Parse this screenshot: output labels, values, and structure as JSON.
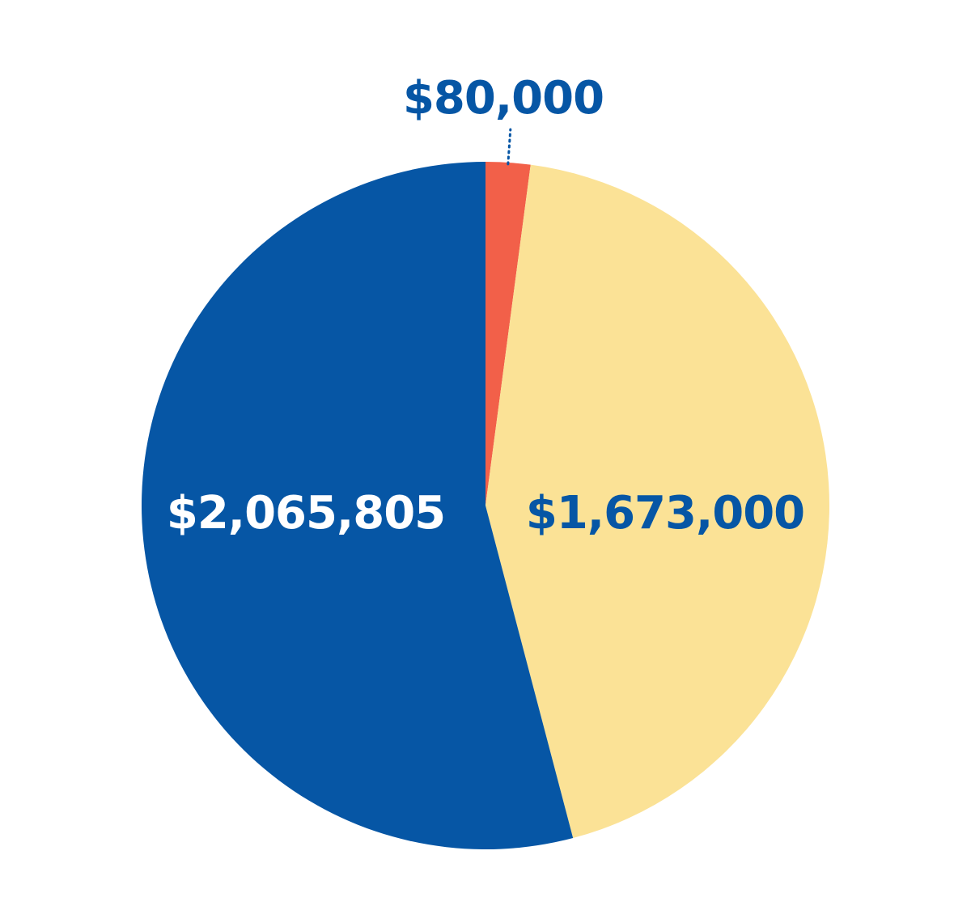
{
  "chart_data": {
    "type": "pie",
    "slices": [
      {
        "label": "$80,000",
        "value": 80000,
        "color": "#F26049",
        "label_color": "#0656A5"
      },
      {
        "label": "$1,673,000",
        "value": 1673000,
        "color": "#FBE296",
        "label_color": "#0656A5"
      },
      {
        "label": "$2,065,805",
        "value": 2065805,
        "color": "#0656A5",
        "label_color": "#FFFFFF"
      }
    ],
    "start_angle": "12 o'clock",
    "direction": "clockwise",
    "leader_line_color": "#0656A5"
  }
}
